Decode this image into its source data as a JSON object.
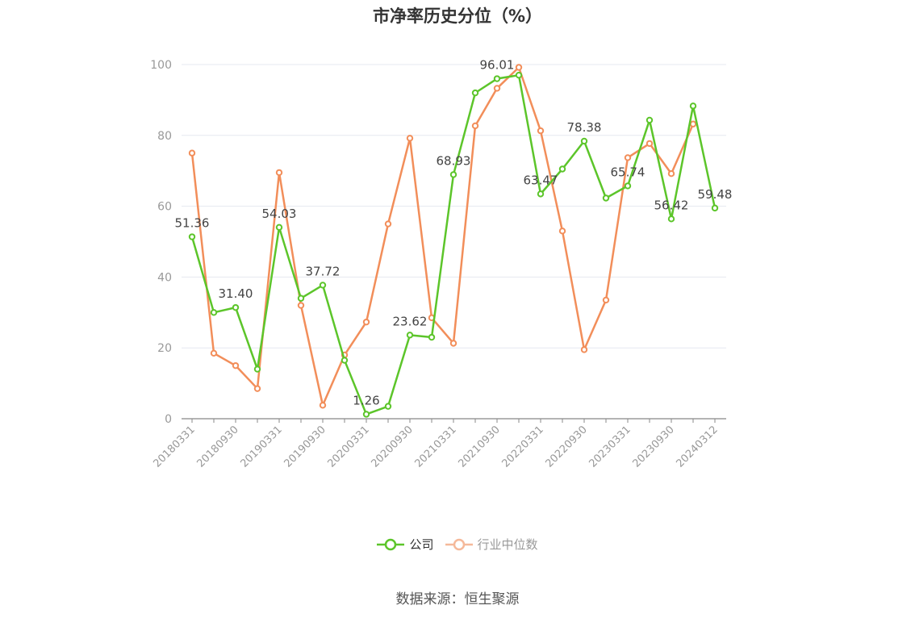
{
  "title": "市净率历史分位（%）",
  "source": "数据来源：恒生聚源",
  "colors": {
    "company": "#5cc52a",
    "industry": "#f28e5a",
    "grid": "#e6e8f0",
    "axis": "#888888"
  },
  "legend": [
    {
      "label": "公司",
      "color": "#5cc52a"
    },
    {
      "label": "行业中位数",
      "color": "#f5b99a"
    }
  ],
  "chart_data": {
    "type": "line",
    "title": "市净率历史分位（%）",
    "ylim": [
      0,
      100
    ],
    "yticks": [
      0,
      20,
      40,
      60,
      80,
      100
    ],
    "grid": true,
    "legend_position": "bottom-center",
    "x": [
      "20180331",
      "20180630",
      "20180930",
      "20181231",
      "20190331",
      "20190630",
      "20190930",
      "20191231",
      "20200331",
      "20200630",
      "20200930",
      "20201231",
      "20210331",
      "20210630",
      "20210930",
      "20211231",
      "20220331",
      "20220630",
      "20220930",
      "20221231",
      "20230331",
      "20230630",
      "20230930",
      "20231231",
      "20240312"
    ],
    "xtick_labels": [
      "20180331",
      "20180930",
      "20190331",
      "20190930",
      "20200331",
      "20200930",
      "20210331",
      "20210930",
      "20220331",
      "20220930",
      "20230331",
      "20230930",
      "20240312"
    ],
    "series": [
      {
        "name": "公司",
        "values": [
          51.36,
          30,
          31.4,
          14,
          54.03,
          34,
          37.72,
          16.5,
          1.26,
          3.5,
          23.62,
          23,
          68.93,
          92,
          96.01,
          97,
          63.47,
          70.5,
          78.38,
          62.3,
          65.74,
          84.3,
          56.42,
          88.3,
          59.48
        ]
      },
      {
        "name": "行业中位数",
        "values": [
          75,
          18.5,
          15,
          8.5,
          69.5,
          32,
          3.8,
          18,
          27.3,
          55,
          79.2,
          28.5,
          21.3,
          82.7,
          93.3,
          99.2,
          81.3,
          53,
          19.5,
          33.5,
          73.7,
          77.7,
          69.2,
          83.2,
          null
        ]
      }
    ],
    "data_labels": [
      {
        "index": 0,
        "text": "51.36"
      },
      {
        "index": 2,
        "text": "31.40"
      },
      {
        "index": 4,
        "text": "54.03"
      },
      {
        "index": 6,
        "text": "37.72"
      },
      {
        "index": 8,
        "text": "1.26"
      },
      {
        "index": 10,
        "text": "23.62"
      },
      {
        "index": 12,
        "text": "68.93"
      },
      {
        "index": 14,
        "text": "96.01"
      },
      {
        "index": 16,
        "text": "63.47"
      },
      {
        "index": 18,
        "text": "78.38"
      },
      {
        "index": 20,
        "text": "65.74"
      },
      {
        "index": 22,
        "text": "56.42"
      },
      {
        "index": 24,
        "text": "59.48"
      }
    ]
  }
}
